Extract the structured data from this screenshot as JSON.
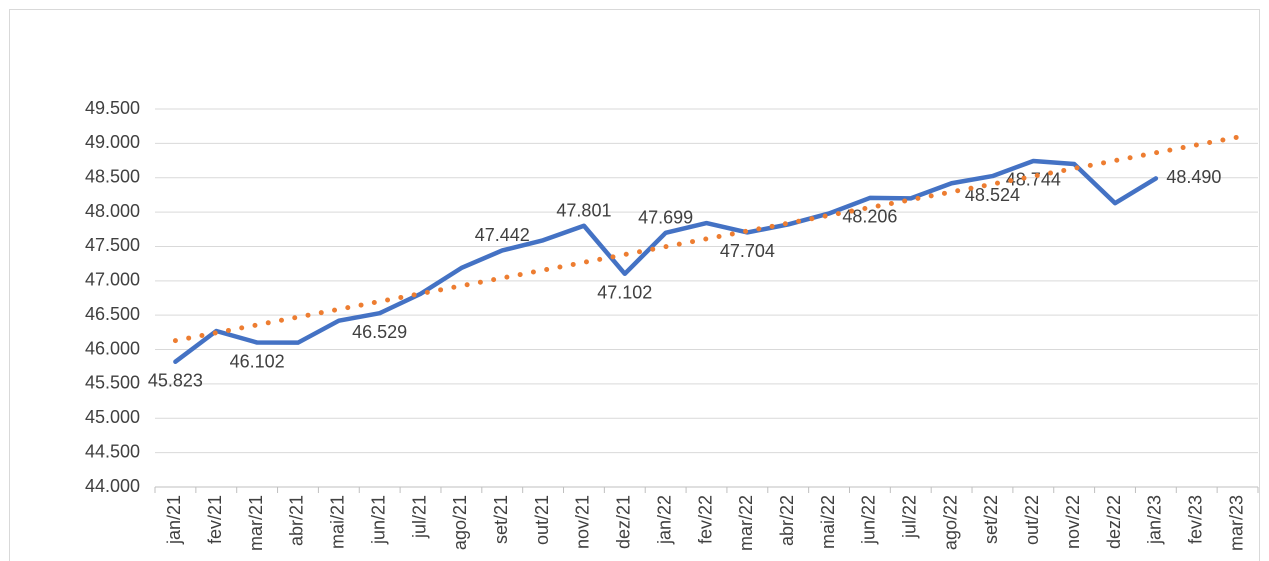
{
  "chart_data": {
    "type": "line",
    "categories": [
      "jan/21",
      "fev/21",
      "mar/21",
      "abr/21",
      "mai/21",
      "jun/21",
      "jul/21",
      "ago/21",
      "set/21",
      "out/21",
      "nov/21",
      "dez/21",
      "jan/22",
      "fev/22",
      "mar/22",
      "abr/22",
      "mai/22",
      "jun/22",
      "jul/22",
      "ago/22",
      "set/22",
      "out/22",
      "nov/22",
      "dez/22",
      "jan/23",
      "fev/23",
      "mar/23"
    ],
    "series": [
      {
        "color": "#4472c4",
        "style": "solid",
        "values": [
          45823,
          46270,
          46102,
          46100,
          46420,
          46529,
          46810,
          47187,
          47442,
          47590,
          47801,
          47102,
          47699,
          47840,
          47704,
          47820,
          47980,
          48206,
          48200,
          48420,
          48524,
          48744,
          48700,
          48130,
          48490,
          null,
          null
        ],
        "value_labels": [
          "45.823",
          null,
          "46.102",
          null,
          null,
          "46.529",
          null,
          null,
          "47.442",
          null,
          "47.801",
          "47.102",
          "47.699",
          null,
          "47.704",
          null,
          null,
          "48.206",
          null,
          null,
          "48.524",
          "48.744",
          null,
          null,
          "48.490",
          null,
          null
        ]
      },
      {
        "color": "#ed7d31",
        "style": "dotted",
        "values": [
          46130,
          46244,
          46358,
          46472,
          46585,
          46699,
          46813,
          46927,
          47041,
          47155,
          47268,
          47382,
          47496,
          47610,
          47724,
          47838,
          47952,
          48066,
          48179,
          48293,
          48407,
          48521,
          48635,
          48749,
          48863,
          48977,
          49090
        ]
      }
    ],
    "ylim": [
      44000,
      49500
    ],
    "yticks": [
      {
        "value": 44000,
        "label": "44.000"
      },
      {
        "value": 44500,
        "label": "44.500"
      },
      {
        "value": 45000,
        "label": "45.000"
      },
      {
        "value": 45500,
        "label": "45.500"
      },
      {
        "value": 46000,
        "label": "46.000"
      },
      {
        "value": 46500,
        "label": "46.500"
      },
      {
        "value": 47000,
        "label": "47.000"
      },
      {
        "value": 47500,
        "label": "47.500"
      },
      {
        "value": 48000,
        "label": "48.000"
      },
      {
        "value": 48500,
        "label": "48.500"
      },
      {
        "value": 49000,
        "label": "49.000"
      },
      {
        "value": 49500,
        "label": "49.500"
      }
    ],
    "grid": true
  }
}
